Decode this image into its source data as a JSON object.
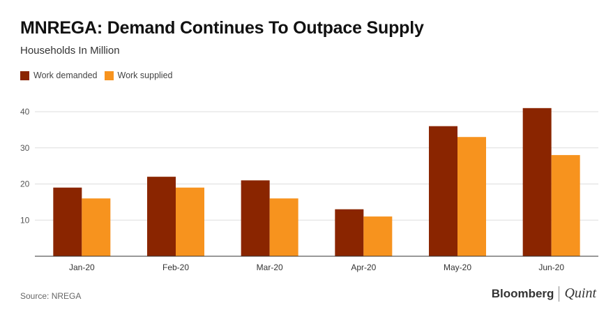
{
  "header": {
    "title": "MNREGA: Demand Continues To Outpace Supply",
    "subtitle": "Households In Million"
  },
  "footer": {
    "source": "Source: NREGA",
    "brand_primary": "Bloomberg",
    "brand_secondary": "Quint"
  },
  "colors": {
    "demanded": "#8a2500",
    "supplied": "#f7931e",
    "grid": "#dddddd",
    "axis": "#333333"
  },
  "chart_data": {
    "type": "bar",
    "title": "MNREGA: Demand Continues To Outpace Supply",
    "subtitle": "Households In Million",
    "categories": [
      "Jan-20",
      "Feb-20",
      "Mar-20",
      "Apr-20",
      "May-20",
      "Jun-20"
    ],
    "series": [
      {
        "name": "Work demanded",
        "values": [
          19,
          22,
          21,
          13,
          36,
          41
        ]
      },
      {
        "name": "Work supplied",
        "values": [
          16,
          19,
          16,
          11,
          33,
          28
        ]
      }
    ],
    "ylim": [
      0,
      40
    ],
    "yticks": [
      10,
      20,
      30,
      40
    ],
    "grid": true,
    "legend_position": "top-left"
  }
}
